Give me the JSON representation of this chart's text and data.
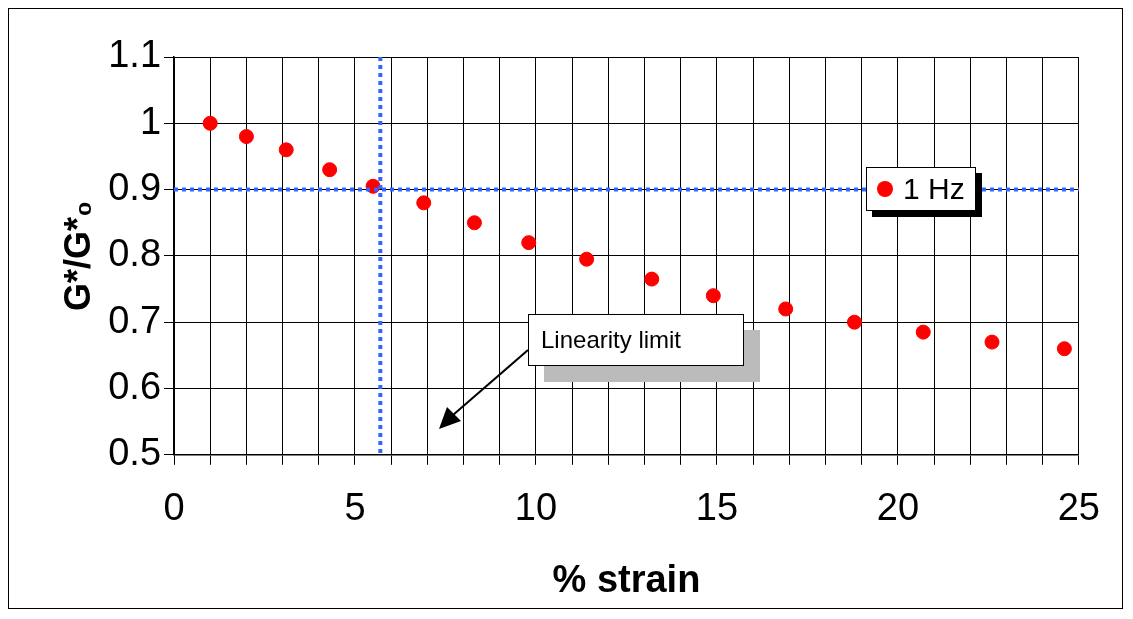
{
  "chart_data": {
    "type": "scatter",
    "xlabel": "% strain",
    "ylabel": "G*/G*₀",
    "series": [
      {
        "name": "1 Hz",
        "color": "#ff0000",
        "x": [
          1.0,
          2.0,
          3.1,
          4.3,
          5.5,
          6.9,
          8.3,
          9.8,
          11.4,
          13.2,
          14.9,
          16.9,
          18.8,
          20.7,
          22.6,
          24.6
        ],
        "values": [
          1.0,
          0.98,
          0.96,
          0.93,
          0.905,
          0.88,
          0.85,
          0.82,
          0.795,
          0.765,
          0.74,
          0.72,
          0.7,
          0.685,
          0.67,
          0.66
        ]
      }
    ],
    "xlim": [
      0,
      25
    ],
    "xticks": [
      0,
      {
        "value": 1,
        "label": null
      },
      {
        "value": 2,
        "label": null
      },
      {
        "value": 3,
        "label": null
      },
      {
        "value": 4,
        "label": null
      },
      5,
      {
        "value": 6,
        "label": null
      },
      {
        "value": 7,
        "label": null
      },
      {
        "value": 8,
        "label": null
      },
      {
        "value": 9,
        "label": null
      },
      10,
      {
        "value": 11,
        "label": null
      },
      {
        "value": 12,
        "label": null
      },
      {
        "value": 13,
        "label": null
      },
      {
        "value": 14,
        "label": null
      },
      15,
      {
        "value": 16,
        "label": null
      },
      {
        "value": 17,
        "label": null
      },
      {
        "value": 18,
        "label": null
      },
      {
        "value": 19,
        "label": null
      },
      20,
      {
        "value": 21,
        "label": null
      },
      {
        "value": 22,
        "label": null
      },
      {
        "value": 23,
        "label": null
      },
      {
        "value": 24,
        "label": null
      },
      25
    ],
    "ylim": [
      0.5,
      1.1
    ],
    "yticks": [
      0.5,
      0.6,
      0.7,
      0.8,
      0.9,
      1,
      1.1
    ],
    "grid": true,
    "legend": "top right",
    "marker": "circle",
    "ref_lines": [
      {
        "axis": "y",
        "value": 0.9,
        "color": "#3366ff",
        "line_style": "dotted"
      },
      {
        "axis": "x",
        "value": 5.7,
        "color": "#3366ff",
        "line_style": "dotted"
      }
    ],
    "annotations": [
      "Linearity limit"
    ]
  }
}
